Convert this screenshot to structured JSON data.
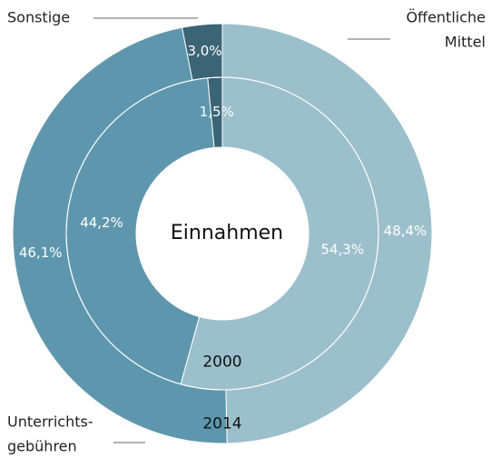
{
  "chart_data": {
    "type": "donut",
    "title": "Einnahmen",
    "categories": [
      [
        "Öffentliche",
        "Mittel"
      ],
      [
        "Unterrichts-",
        "gebühren"
      ],
      [
        "Sonstige"
      ]
    ],
    "colors": [
      "#9cbfcc",
      "#5e97ad",
      "#3b6474"
    ],
    "series": [
      {
        "name": "2000",
        "values": [
          54.3,
          44.2,
          1.5
        ],
        "value_labels": [
          "54,3%",
          "44,2%",
          "1,5%"
        ]
      },
      {
        "name": "2014",
        "values": [
          48.4,
          46.1,
          3.0
        ],
        "value_labels": [
          "48,4%",
          "46,1%",
          "3,0%"
        ]
      }
    ]
  }
}
